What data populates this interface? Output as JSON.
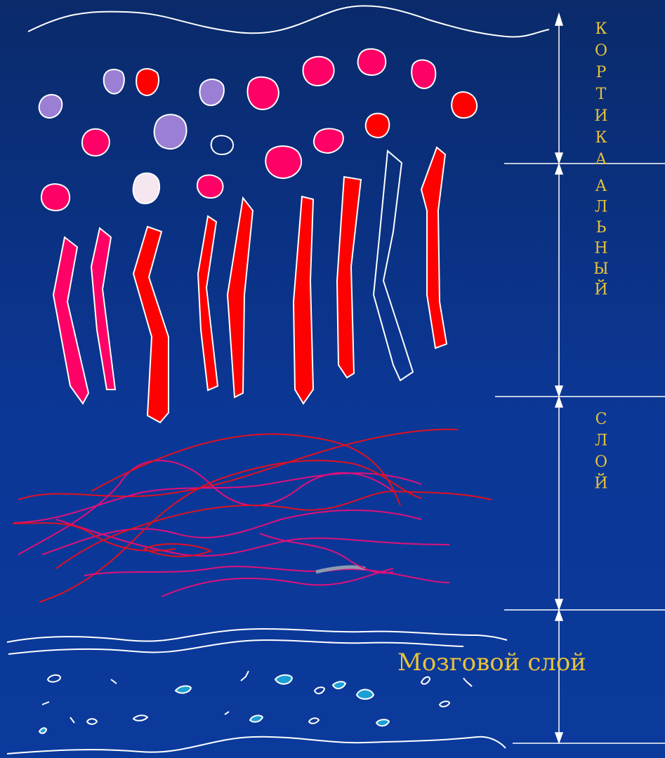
{
  "labels": {
    "cortical_word_1": "КОРТИКА",
    "cortical_word_2": "АЛЬНЫЙ",
    "cortical_word_3": "СЛОЙ",
    "medulla": "Мозговой слой"
  },
  "colors": {
    "background": "#0b3796",
    "outline": "#ffffff",
    "text": "#e8c23a",
    "red_cell": "#ff0000",
    "pink_cell": "#ff0066",
    "lilac_cell": "#9b7fd4",
    "pale_cell": "#f5e6ef",
    "fiber_red": "#e01020",
    "fiber_pink": "#e0107a",
    "medulla_cell": "#1aa0d6"
  },
  "icons": {
    "arrow": "double-headed-arrow"
  }
}
